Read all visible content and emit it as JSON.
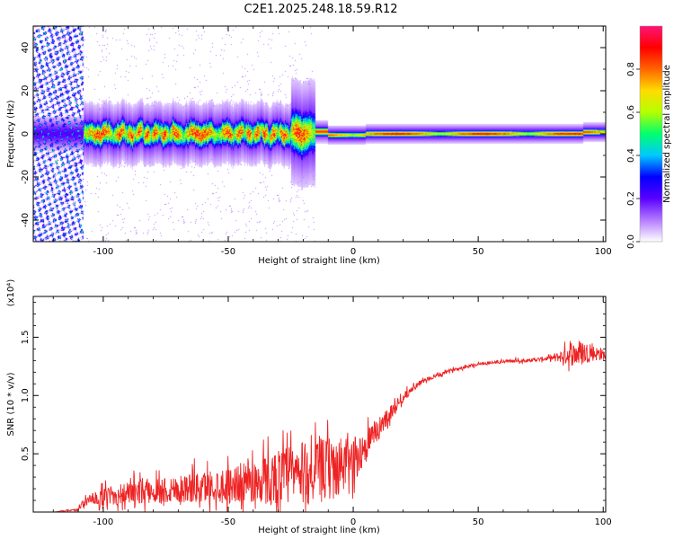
{
  "title": "C2E1.2025.248.18.59.R12",
  "chart_data": [
    {
      "type": "heatmap",
      "name": "spectrogram",
      "xlabel": "Height of straight line (km)",
      "ylabel": "Frequency (Hz)",
      "xlim": [
        -128,
        101
      ],
      "ylim": [
        -50,
        50
      ],
      "xticks": [
        -100,
        -50,
        0,
        50,
        100
      ],
      "yticks": [
        -40,
        -20,
        0,
        20,
        40
      ],
      "colorbar": {
        "label": "Normalized spectral amplitude",
        "range": [
          0,
          1
        ],
        "ticks": [
          "0.0",
          "0.2",
          "0.4",
          "0.6",
          "0.8"
        ],
        "tick_values": [
          0.0,
          0.2,
          0.4,
          0.6,
          0.8
        ],
        "colors": [
          "#ffffff",
          "#b47bff",
          "#5a00ff",
          "#0000ff",
          "#00c8ff",
          "#00ff6e",
          "#b4ff00",
          "#ffdc00",
          "#ff6400",
          "#ff0000",
          "#ff1478"
        ]
      },
      "ridge": {
        "frequency_hz": 0,
        "noisy_region_km": [
          -128,
          -108
        ],
        "broad_band_km": [
          -108,
          -15
        ],
        "narrow_band_km": [
          -10,
          100
        ],
        "peak_amplitude": 0.9
      }
    },
    {
      "type": "line",
      "name": "snr",
      "xlabel": "Height of straight line (km)",
      "ylabel": "SNR (10 * v/v)",
      "multiplier": "(x10⁴)",
      "xlim": [
        -128,
        101
      ],
      "ylim": [
        0,
        1.85
      ],
      "xticks": [
        -100,
        -50,
        0,
        50,
        100
      ],
      "yticks": [
        "0.5",
        "1.0",
        "1.5"
      ],
      "ytick_values": [
        0.5,
        1.0,
        1.5
      ],
      "color": "#ee2222",
      "series": [
        {
          "name": "SNR",
          "x": [
            -128,
            -120,
            -110,
            -108,
            -100,
            -90,
            -80,
            -70,
            -60,
            -50,
            -40,
            -30,
            -20,
            -10,
            -5,
            0,
            5,
            10,
            15,
            20,
            25,
            30,
            40,
            50,
            60,
            70,
            80,
            90,
            95,
            101
          ],
          "values": [
            0.0,
            0.0,
            0.02,
            0.08,
            0.12,
            0.15,
            0.17,
            0.19,
            0.2,
            0.22,
            0.24,
            0.27,
            0.3,
            0.34,
            0.36,
            0.42,
            0.55,
            0.7,
            0.85,
            0.98,
            1.08,
            1.14,
            1.22,
            1.27,
            1.29,
            1.3,
            1.32,
            1.35,
            1.36,
            1.34
          ],
          "spread": [
            0.0,
            0.0,
            0.02,
            0.08,
            0.15,
            0.2,
            0.22,
            0.25,
            0.28,
            0.32,
            0.38,
            0.5,
            0.55,
            0.55,
            0.5,
            0.4,
            0.3,
            0.2,
            0.12,
            0.08,
            0.05,
            0.04,
            0.03,
            0.03,
            0.03,
            0.03,
            0.04,
            0.25,
            0.15,
            0.08
          ]
        }
      ]
    }
  ]
}
